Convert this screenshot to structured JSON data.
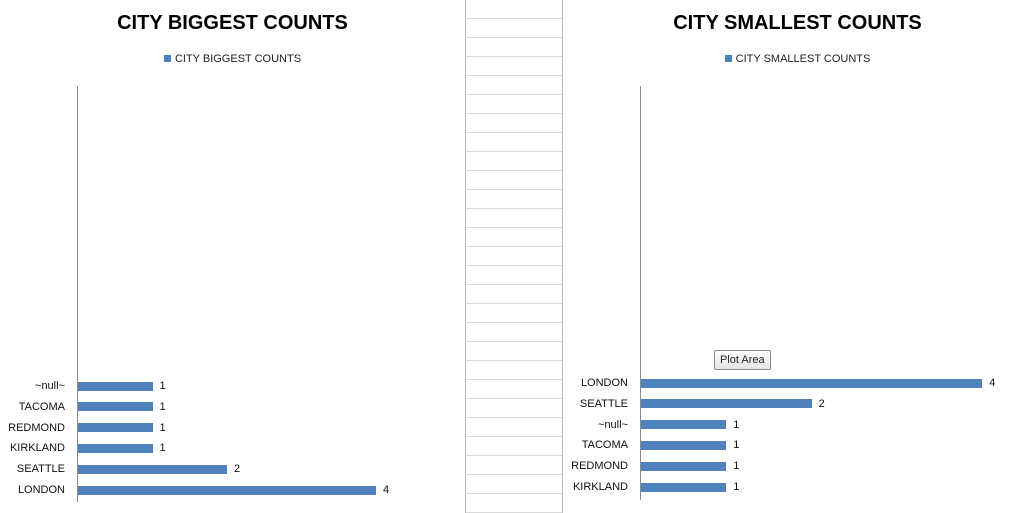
{
  "chart_data": [
    {
      "type": "bar",
      "orientation": "horizontal",
      "title": "CITY BIGGEST COUNTS",
      "legend": "CITY BIGGEST COUNTS",
      "categories": [
        "~null~",
        "TACOMA",
        "REDMOND",
        "KIRKLAND",
        "SEATTLE",
        "LONDON"
      ],
      "values": [
        1,
        1,
        1,
        1,
        2,
        4
      ],
      "xlim": [
        0,
        4
      ],
      "grid": false,
      "color": "#4f81bd"
    },
    {
      "type": "bar",
      "orientation": "horizontal",
      "title": "CITY SMALLEST COUNTS",
      "legend": "CITY SMALLEST COUNTS",
      "categories": [
        "LONDON",
        "SEATTLE",
        "~null~",
        "TACOMA",
        "REDMOND",
        "KIRKLAND"
      ],
      "values": [
        4,
        2,
        1,
        1,
        1,
        1
      ],
      "xlim": [
        0,
        4
      ],
      "grid": false,
      "color": "#4f81bd"
    }
  ],
  "tooltip": {
    "text": "Plot Area"
  }
}
